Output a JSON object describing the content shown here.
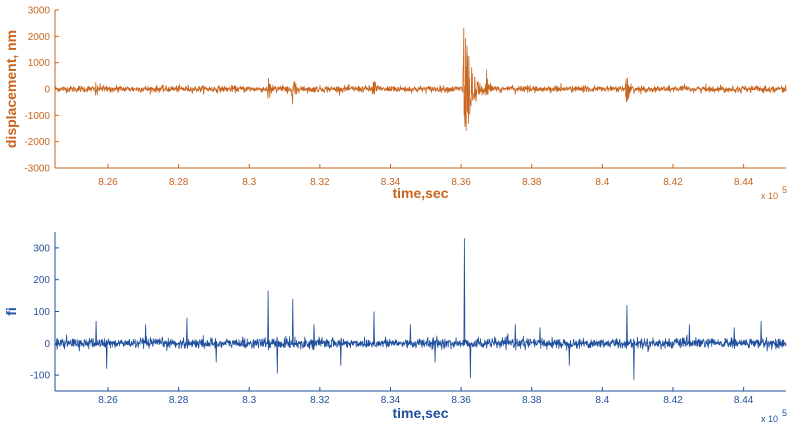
{
  "chart_data": [
    {
      "type": "line",
      "xlabel": "time,sec",
      "ylabel": "displacement, nm",
      "x_multiplier_label": "x 10",
      "x_multiplier_exp": "5",
      "xlim": [
        82.45,
        84.52
      ],
      "ylim": [
        -3000,
        3000
      ],
      "xticks": [
        8.26,
        8.28,
        8.3,
        8.32,
        8.34,
        8.36,
        8.38,
        8.4,
        8.42,
        8.44
      ],
      "xtick_labels": [
        "8.26",
        "8.28",
        "8.3",
        "8.32",
        "8.34",
        "8.36",
        "8.38",
        "8.4",
        "8.42",
        "8.44"
      ],
      "yticks": [
        -3000,
        -2000,
        -1000,
        0,
        1000,
        2000,
        3000
      ],
      "ytick_labels": [
        "-3000",
        "-2000",
        "-1000",
        "0",
        "1000",
        "2000",
        "3000"
      ],
      "color": "#c8641e",
      "baseline_amplitude": 140,
      "events": [
        {
          "x": 8.2565,
          "amp": 500
        },
        {
          "x": 8.3054,
          "amp": 650
        },
        {
          "x": 8.3122,
          "amp": 700
        },
        {
          "x": 8.3352,
          "amp": 400
        },
        {
          "x": 8.3608,
          "amp": 3000
        },
        {
          "x": 8.3672,
          "amp": 800
        },
        {
          "x": 8.4068,
          "amp": 750
        }
      ]
    },
    {
      "type": "line",
      "xlabel": "time,sec",
      "ylabel": "fi",
      "x_multiplier_label": "x 10",
      "x_multiplier_exp": "5",
      "xlim": [
        82.45,
        84.52
      ],
      "ylim": [
        -150,
        350
      ],
      "xticks": [
        8.26,
        8.28,
        8.3,
        8.32,
        8.34,
        8.36,
        8.38,
        8.4,
        8.42,
        8.44
      ],
      "xtick_labels": [
        "8.26",
        "8.28",
        "8.3",
        "8.32",
        "8.34",
        "8.36",
        "8.38",
        "8.4",
        "8.42",
        "8.44"
      ],
      "yticks": [
        -100,
        0,
        100,
        200,
        300
      ],
      "ytick_labels": [
        "-100",
        "0",
        "100",
        "200",
        "300"
      ],
      "color": "#1f4e9c",
      "baseline_amplitude": 18,
      "spikes": [
        {
          "x": 8.2565,
          "y": 70
        },
        {
          "x": 8.2595,
          "y": -80
        },
        {
          "x": 8.2705,
          "y": 60
        },
        {
          "x": 8.2822,
          "y": 80
        },
        {
          "x": 8.2905,
          "y": -60
        },
        {
          "x": 8.3052,
          "y": 165
        },
        {
          "x": 8.3078,
          "y": -95
        },
        {
          "x": 8.3122,
          "y": 140
        },
        {
          "x": 8.3182,
          "y": 60
        },
        {
          "x": 8.3258,
          "y": -70
        },
        {
          "x": 8.3352,
          "y": 100
        },
        {
          "x": 8.3455,
          "y": 60
        },
        {
          "x": 8.3525,
          "y": -60
        },
        {
          "x": 8.3608,
          "y": 330
        },
        {
          "x": 8.3625,
          "y": -110
        },
        {
          "x": 8.3752,
          "y": 60
        },
        {
          "x": 8.3822,
          "y": 50
        },
        {
          "x": 8.3905,
          "y": -70
        },
        {
          "x": 8.4068,
          "y": 120
        },
        {
          "x": 8.4088,
          "y": -115
        },
        {
          "x": 8.4245,
          "y": 60
        },
        {
          "x": 8.4372,
          "y": 50
        },
        {
          "x": 8.4448,
          "y": 70
        }
      ]
    }
  ]
}
